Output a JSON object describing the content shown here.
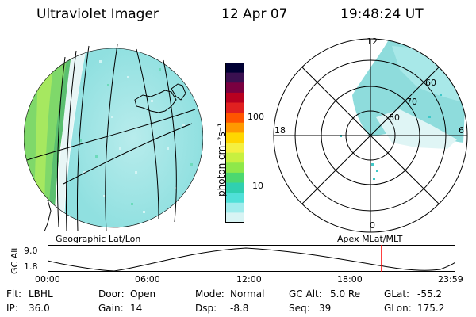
{
  "header": {
    "title": "Ultraviolet Imager",
    "date": "12 Apr 07",
    "time": "19:48:24 UT"
  },
  "colorbar": {
    "unit_label": "photon cm⁻²s⁻¹",
    "ticks": [
      {
        "value": 100,
        "label": "100"
      },
      {
        "value": 10,
        "label": "10"
      }
    ],
    "colors": [
      "#000033",
      "#3a1050",
      "#7a0040",
      "#b80020",
      "#e02020",
      "#ff5500",
      "#ff9900",
      "#ffd600",
      "#f4f040",
      "#c8f040",
      "#8ee84a",
      "#4cd870",
      "#30d0b0",
      "#50e0d8",
      "#a0ecec",
      "#d8f4f4"
    ]
  },
  "geo_panel": {
    "label": "Geographic Lat/Lon"
  },
  "polar_panel": {
    "label": "Apex  MLat/MLT",
    "mlt_labels": {
      "top": "12",
      "left": "18",
      "right": "6",
      "bottom": "0"
    },
    "lat_labels": [
      "60",
      "70",
      "80"
    ]
  },
  "altitude_plot": {
    "ylabel": "GC Alt",
    "ymax_label": "9.0",
    "ymin_label": "1.8",
    "time_ticks": [
      "00:00",
      "06:00",
      "12:00",
      "18:00",
      "23:59"
    ],
    "current_marker_color": "#ff0000"
  },
  "status": {
    "flt_label": "Flt:",
    "flt_value": "LBHL",
    "door_label": "Door:",
    "door_value": "Open",
    "mode_label": "Mode:",
    "mode_value": "Normal",
    "gcalt_label": "GC Alt:",
    "gcalt_value": "5.0 Re",
    "glat_label": "GLat:",
    "glat_value": "-55.2",
    "ip_label": "IP:",
    "ip_value": "36.0",
    "gain_label": "Gain:",
    "gain_value": "14",
    "dsp_label": "Dsp:",
    "dsp_value": "-8.8",
    "seq_label": "Seq:",
    "seq_value": "39",
    "glon_label": "GLon:",
    "glon_value": "175.2"
  }
}
